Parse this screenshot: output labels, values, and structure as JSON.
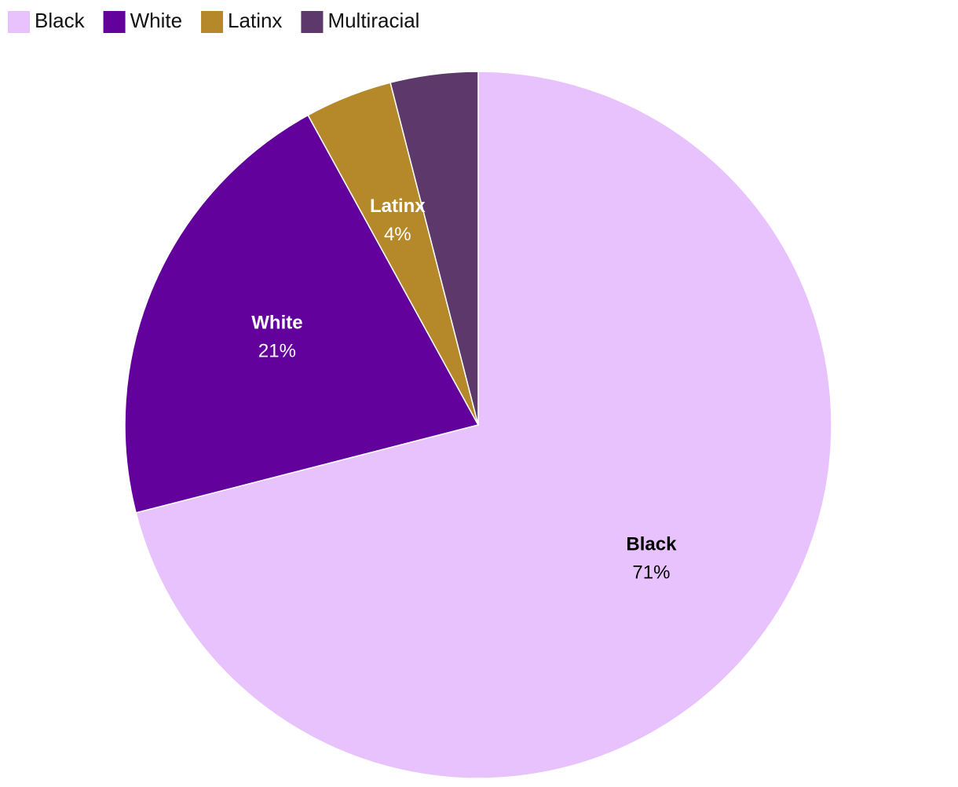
{
  "chart_data": {
    "type": "pie",
    "categories": [
      "Black",
      "White",
      "Latinx",
      "Multiracial"
    ],
    "values": [
      71,
      21,
      4,
      4
    ],
    "value_labels": [
      "71%",
      "21%",
      "4%",
      null
    ],
    "colors": [
      "#e8c2fd",
      "#62019c",
      "#b5892a",
      "#5c386b"
    ],
    "legend": "top-left"
  }
}
